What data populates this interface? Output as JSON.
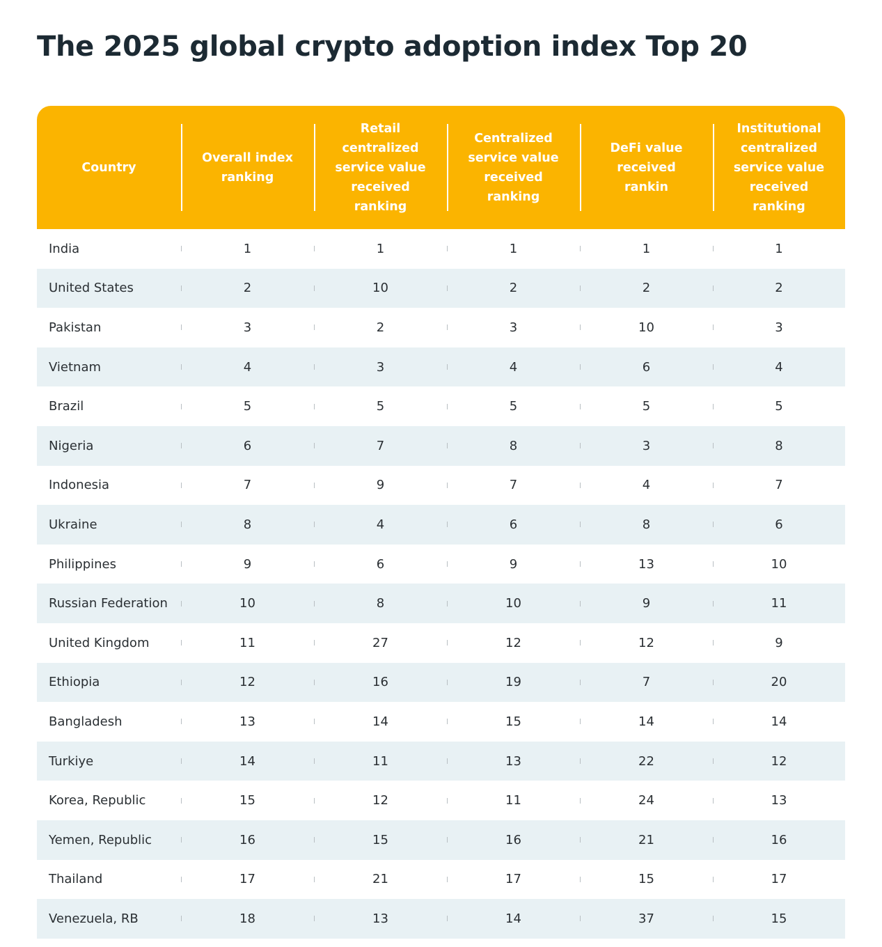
{
  "title": "The 2025 global crypto adoption index Top 20",
  "colors": {
    "header": "#fbb400",
    "stripe": "#e8f1f4",
    "title": "#1c2a33"
  },
  "chart_data": {
    "type": "table",
    "title": "The 2025 global crypto adoption index Top 20",
    "columns": [
      "Country",
      "Overall index ranking",
      "Retail centralized service value received ranking",
      "Centralized service value received ranking",
      "DeFi value received rankin",
      "Institutional centralized service value received ranking"
    ],
    "rows": [
      [
        "India",
        "1",
        "1",
        "1",
        "1",
        "1"
      ],
      [
        "United States",
        "2",
        "10",
        "2",
        "2",
        "2"
      ],
      [
        "Pakistan",
        "3",
        "2",
        "3",
        "10",
        "3"
      ],
      [
        "Vietnam",
        "4",
        "3",
        "4",
        "6",
        "4"
      ],
      [
        "Brazil",
        "5",
        "5",
        "5",
        "5",
        "5"
      ],
      [
        "Nigeria",
        "6",
        "7",
        "8",
        "3",
        "8"
      ],
      [
        "Indonesia",
        "7",
        "9",
        "7",
        "4",
        "7"
      ],
      [
        "Ukraine",
        "8",
        "4",
        "6",
        "8",
        "6"
      ],
      [
        "Philippines",
        "9",
        "6",
        "9",
        "13",
        "10"
      ],
      [
        "Russian Federation",
        "10",
        "8",
        "10",
        "9",
        "11"
      ],
      [
        "United Kingdom",
        "11",
        "27",
        "12",
        "12",
        "9"
      ],
      [
        "Ethiopia",
        "12",
        "16",
        "19",
        "7",
        "20"
      ],
      [
        "Bangladesh",
        "13",
        "14",
        "15",
        "14",
        "14"
      ],
      [
        "Turkiye",
        "14",
        "11",
        "13",
        "22",
        "12"
      ],
      [
        "Korea, Republic",
        "15",
        "12",
        "11",
        "24",
        "13"
      ],
      [
        "Yemen, Republic",
        "16",
        "15",
        "16",
        "21",
        "16"
      ],
      [
        "Thailand",
        "17",
        "21",
        "17",
        "15",
        "17"
      ],
      [
        "Venezuela, RB",
        "18",
        "13",
        "14",
        "37",
        "15"
      ]
    ]
  }
}
